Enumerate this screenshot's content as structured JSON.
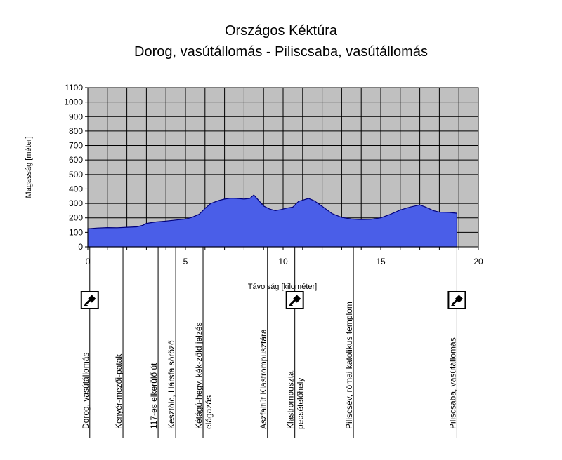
{
  "chart_data": {
    "type": "area",
    "title": "Országos Kéktúra",
    "subtitle": "Dorog, vasútállomás - Piliscsaba, vasútállomás",
    "xlabel": "Távolság [kilométer]",
    "ylabel": "Magasság [méter]",
    "xlim": [
      0,
      20
    ],
    "ylim": [
      0,
      1100
    ],
    "x_ticks": [
      0,
      5,
      10,
      15,
      20
    ],
    "y_ticks": [
      0,
      100,
      200,
      300,
      400,
      500,
      600,
      700,
      800,
      900,
      1000,
      1100
    ],
    "grid": true,
    "fill_color": "#4a5ee8",
    "line_color": "#00007a",
    "plot_background": "#c0c0c0",
    "points": [
      [
        0,
        125
      ],
      [
        0.5,
        130
      ],
      [
        1,
        133
      ],
      [
        1.5,
        132
      ],
      [
        2,
        135
      ],
      [
        2.5,
        138
      ],
      [
        2.8,
        148
      ],
      [
        3,
        162
      ],
      [
        3.5,
        172
      ],
      [
        4,
        178
      ],
      [
        4.5,
        185
      ],
      [
        5,
        192
      ],
      [
        5.3,
        202
      ],
      [
        5.7,
        225
      ],
      [
        6.0,
        265
      ],
      [
        6.3,
        300
      ],
      [
        6.7,
        320
      ],
      [
        7.0,
        330
      ],
      [
        7.3,
        336
      ],
      [
        7.6,
        335
      ],
      [
        8.0,
        330
      ],
      [
        8.3,
        335
      ],
      [
        8.5,
        358
      ],
      [
        8.7,
        328
      ],
      [
        9.0,
        282
      ],
      [
        9.3,
        262
      ],
      [
        9.6,
        250
      ],
      [
        9.9,
        258
      ],
      [
        10.2,
        268
      ],
      [
        10.5,
        275
      ],
      [
        10.8,
        315
      ],
      [
        11.0,
        322
      ],
      [
        11.3,
        335
      ],
      [
        11.6,
        318
      ],
      [
        12.0,
        280
      ],
      [
        12.5,
        230
      ],
      [
        13.0,
        203
      ],
      [
        13.5,
        192
      ],
      [
        14.0,
        188
      ],
      [
        14.5,
        190
      ],
      [
        15.0,
        200
      ],
      [
        15.5,
        225
      ],
      [
        16.0,
        255
      ],
      [
        16.5,
        275
      ],
      [
        17.0,
        290
      ],
      [
        17.3,
        275
      ],
      [
        17.7,
        250
      ],
      [
        18.0,
        240
      ],
      [
        18.5,
        238
      ],
      [
        18.9,
        232
      ]
    ],
    "markers": [
      {
        "x": 0.1,
        "label": "Dorog, vasútállomás",
        "icon": true
      },
      {
        "x": 1.8,
        "label": "Kenyér-mezői-patak",
        "icon": false
      },
      {
        "x": 3.6,
        "label": "117-es elkerülő út",
        "icon": false
      },
      {
        "x": 4.5,
        "label": "Kesztölc, Hársfa söröző",
        "icon": false
      },
      {
        "x": 5.9,
        "label": "Kétágú-hegy, kék-zöld jelzés",
        "label2": "elágazás",
        "icon": false
      },
      {
        "x": 9.2,
        "label": "Aszfaltút Klastrompusztára",
        "icon": false
      },
      {
        "x": 10.6,
        "label": "Klastrompuszta,",
        "label2": "pecsételőhely",
        "icon": true
      },
      {
        "x": 13.6,
        "label": "Piliscsév, római katolikus templom",
        "icon": false
      },
      {
        "x": 18.9,
        "label": "Piliscsaba, vasútállomás",
        "icon": true
      }
    ]
  }
}
